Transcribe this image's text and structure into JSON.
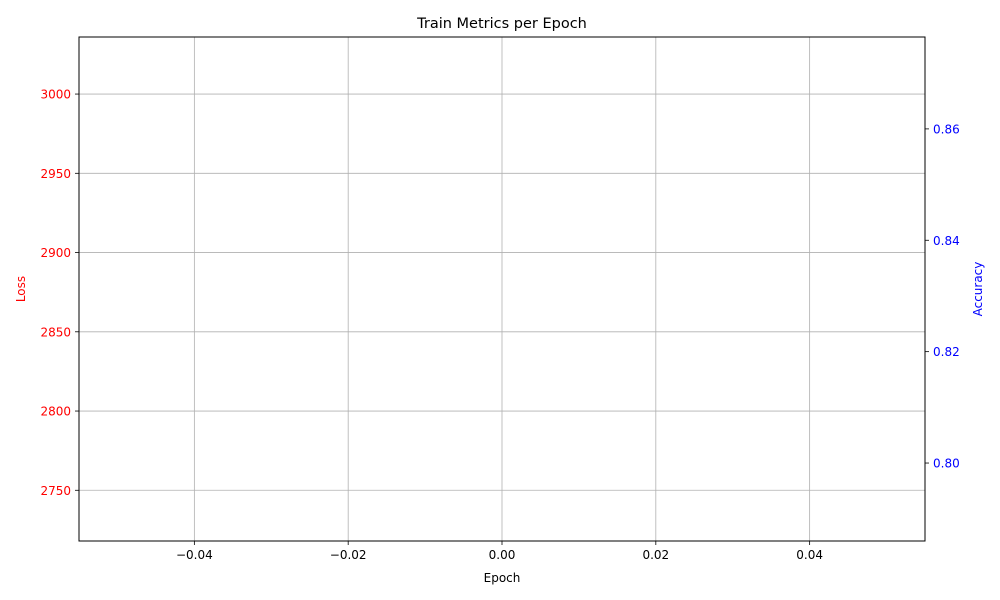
{
  "chart_data": {
    "type": "line",
    "title": "Train Metrics per Epoch",
    "xlabel": "Epoch",
    "ylabel_left": "Loss",
    "ylabel_right": "Accuracy",
    "xlim": [
      -0.055,
      0.055
    ],
    "ylim_left": [
      2718,
      3036
    ],
    "ylim_right": [
      0.786,
      0.8765
    ],
    "x_ticks": [
      -0.04,
      -0.02,
      0.0,
      0.02,
      0.04
    ],
    "x_tick_labels": [
      "−0.04",
      "−0.02",
      "0.00",
      "0.02",
      "0.04"
    ],
    "y_left_ticks": [
      2750,
      2800,
      2850,
      2900,
      2950,
      3000
    ],
    "y_left_tick_labels": [
      "2750",
      "2800",
      "2850",
      "2900",
      "2950",
      "3000"
    ],
    "y_right_ticks": [
      0.8,
      0.82,
      0.84,
      0.86
    ],
    "y_right_tick_labels": [
      "0.80",
      "0.82",
      "0.84",
      "0.86"
    ],
    "grid": true,
    "series": [
      {
        "name": "Loss",
        "axis": "left",
        "color": "#ff0000",
        "x": [],
        "y": []
      },
      {
        "name": "Accuracy",
        "axis": "right",
        "color": "#0000ff",
        "x": [],
        "y": []
      }
    ],
    "colors": {
      "left_axis": "#ff0000",
      "right_axis": "#0000ff",
      "grid": "#b0b0b0",
      "frame": "#000000",
      "text": "#000000"
    }
  }
}
